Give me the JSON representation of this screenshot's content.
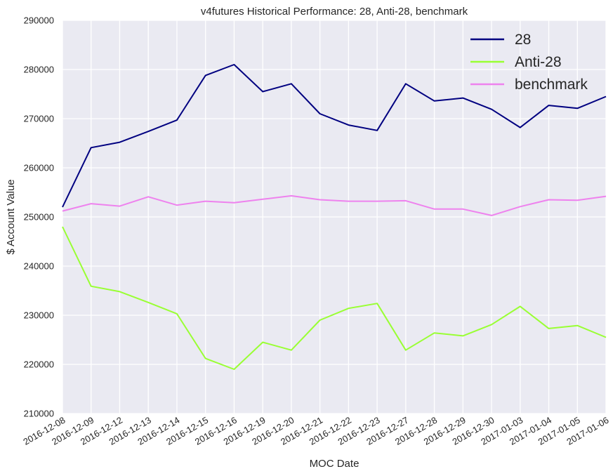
{
  "chart_data": {
    "type": "line",
    "title": "v4futures Historical Performance: 28, Anti-28, benchmark",
    "xlabel": "MOC Date",
    "ylabel": "$ Account Value",
    "ylim": [
      210000,
      290000
    ],
    "yticks": [
      210000,
      220000,
      230000,
      240000,
      250000,
      260000,
      270000,
      280000,
      290000
    ],
    "ytick_labels": [
      "210000",
      "220000",
      "230000",
      "240000",
      "250000",
      "260000",
      "270000",
      "280000",
      "290000"
    ],
    "categories": [
      "2016-12-08",
      "2016-12-09",
      "2016-12-12",
      "2016-12-13",
      "2016-12-14",
      "2016-12-15",
      "2016-12-16",
      "2016-12-19",
      "2016-12-20",
      "2016-12-21",
      "2016-12-22",
      "2016-12-23",
      "2016-12-27",
      "2016-12-28",
      "2016-12-29",
      "2016-12-30",
      "2017-01-03",
      "2017-01-04",
      "2017-01-05",
      "2017-01-06"
    ],
    "grid": true,
    "background": "#eaeaf2",
    "legend_position": "top-right",
    "series": [
      {
        "name": "28",
        "color": "#000080",
        "values": [
          252000,
          264100,
          265200,
          267400,
          269700,
          278800,
          281000,
          275500,
          277100,
          271000,
          268700,
          267600,
          277100,
          273600,
          274200,
          271900,
          268200,
          272700,
          272100,
          274500
        ]
      },
      {
        "name": "Anti-28",
        "color": "#99ff33",
        "values": [
          248000,
          235900,
          234800,
          232600,
          230300,
          221200,
          219000,
          224500,
          222900,
          229000,
          231400,
          232400,
          222900,
          226400,
          225800,
          228100,
          231800,
          227300,
          227900,
          225500
        ]
      },
      {
        "name": "benchmark",
        "color": "#ee82ee",
        "values": [
          251200,
          252700,
          252200,
          254100,
          252400,
          253200,
          252900,
          253600,
          254300,
          253500,
          253200,
          253200,
          253300,
          251600,
          251600,
          250300,
          252100,
          253500,
          253400,
          254200
        ]
      }
    ]
  }
}
